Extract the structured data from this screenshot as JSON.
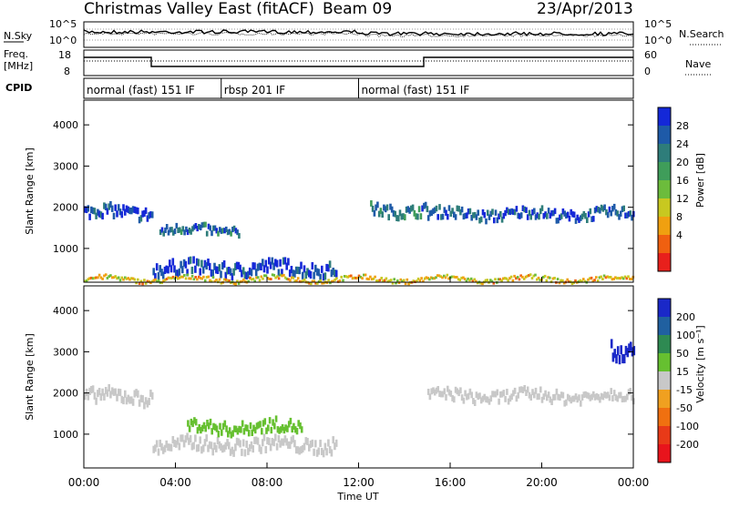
{
  "header": {
    "title": "Christmas Valley East (fitACF)",
    "beam": "Beam 09",
    "date": "23/Apr/2013"
  },
  "noise_panel": {
    "left_label": "N.Sky",
    "right_label": "N.Search",
    "left_ticks": [
      "10^5",
      "10^0"
    ],
    "right_ticks": [
      "10^5",
      "10^0"
    ]
  },
  "freq_panel": {
    "left_label_1": "Freq.",
    "left_label_2": "[MHz]",
    "left_ticks": [
      "18",
      "8"
    ],
    "right_label": "Nave",
    "right_ticks": [
      "60",
      "0"
    ]
  },
  "cpid": {
    "label": "CPID",
    "segments": [
      {
        "text": "normal (fast) 151 IF",
        "start_h": 0
      },
      {
        "text": "rbsp 201 IF",
        "start_h": 6
      },
      {
        "text": "normal (fast) 151 IF",
        "start_h": 12
      }
    ]
  },
  "axes": {
    "ylabel": "Slant Range [km]",
    "yticks": [
      "4000",
      "3000",
      "2000",
      "1000"
    ],
    "xticks": [
      "00:00",
      "04:00",
      "08:00",
      "12:00",
      "16:00",
      "20:00",
      "00:00"
    ],
    "xlabel": "Time UT"
  },
  "colorbars": {
    "power": {
      "label": "Power [dB]",
      "ticks": [
        "28",
        "24",
        "20",
        "16",
        "12",
        "8",
        "4"
      ],
      "colors": [
        "#1428d8",
        "#1e5aa8",
        "#2e7d7a",
        "#3f9d5a",
        "#6cbc3c",
        "#c8c820",
        "#f0a010",
        "#f06010",
        "#e8201c"
      ]
    },
    "velocity": {
      "label": "Velocity [m s⁻¹]",
      "ticks": [
        "200",
        "100",
        "50",
        "15",
        "-15",
        "-50",
        "-100",
        "-200"
      ],
      "colors": [
        "#1a28c8",
        "#2060a0",
        "#2e8a52",
        "#66c030",
        "#c8c8c8",
        "#f0a020",
        "#f07010",
        "#e83a18",
        "#e8141c"
      ]
    }
  },
  "chart_data": [
    {
      "type": "heatmap",
      "title": "Power",
      "xlabel": "Time UT",
      "ylabel": "Slant Range [km]",
      "x_range_hours": [
        0,
        24
      ],
      "y_range_km": [
        180,
        4600
      ],
      "colorbar_label": "Power [dB]",
      "colorbar_range": [
        0,
        30
      ],
      "features": [
        {
          "t0": 0,
          "t1": 3,
          "r": 1950,
          "w": 180,
          "v": 27
        },
        {
          "t0": 3.3,
          "t1": 6.8,
          "r": 1500,
          "w": 150,
          "v": 24
        },
        {
          "t0": 3,
          "t1": 11,
          "r": 600,
          "w": 200,
          "v": 27
        },
        {
          "t0": 12.5,
          "t1": 15,
          "r": 2000,
          "w": 170,
          "v": 22
        },
        {
          "t0": 15,
          "t1": 24,
          "r": 1900,
          "w": 160,
          "v": 25
        },
        {
          "t0": 0,
          "t1": 24,
          "r": 280,
          "w": 70,
          "v": 10
        }
      ]
    },
    {
      "type": "heatmap",
      "title": "Velocity",
      "xlabel": "Time UT",
      "ylabel": "Slant Range [km]",
      "x_range_hours": [
        0,
        24
      ],
      "y_range_km": [
        180,
        4600
      ],
      "colorbar_label": "Velocity [m s⁻¹]",
      "colorbar_range": [
        -200,
        200
      ],
      "features": [
        {
          "t0": 0,
          "t1": 3,
          "r": 2000,
          "w": 200,
          "v": 0
        },
        {
          "t0": 3,
          "t1": 11,
          "r": 820,
          "w": 200,
          "v": -10
        },
        {
          "t0": 4.5,
          "t1": 9.5,
          "r": 1250,
          "w": 180,
          "v": 40
        },
        {
          "t0": 15,
          "t1": 24,
          "r": 2000,
          "w": 170,
          "v": 0
        },
        {
          "t0": 23,
          "t1": 24,
          "r": 3050,
          "w": 250,
          "v": 200
        }
      ]
    }
  ]
}
